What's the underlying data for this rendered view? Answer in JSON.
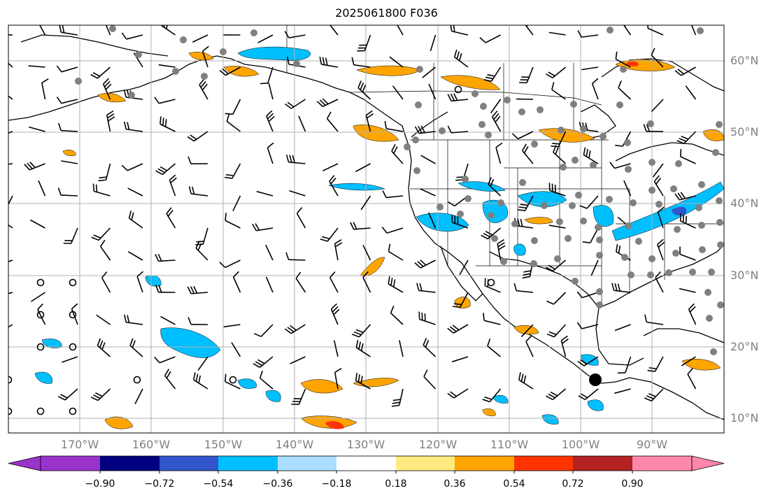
{
  "title": "2025061800 F036",
  "lat_labels": [
    "60°N",
    "50°N",
    "40°N",
    "30°N",
    "20°N",
    "10°N"
  ],
  "lon_labels": [
    "170°W",
    "160°W",
    "150°W",
    "140°W",
    "130°W",
    "120°W",
    "110°W",
    "100°W",
    "90°W"
  ],
  "colorbar": {
    "tick_labels": [
      "−0.90",
      "−0.72",
      "−0.54",
      "−0.36",
      "−0.18",
      "0.18",
      "0.36",
      "0.54",
      "0.72",
      "0.90"
    ],
    "colors": [
      "#9933cc",
      "#000080",
      "#3355cc",
      "#00bfff",
      "#aadfff",
      "#ffffff",
      "#ffea80",
      "#ffa500",
      "#ff3300",
      "#b22222",
      "#ff88aa"
    ]
  },
  "field_colors": {
    "negative_light": "#aadfff",
    "negative": "#00bfff",
    "negative_strong": "#3355cc",
    "positive_light": "#ffea80",
    "positive": "#ffa500",
    "positive_strong": "#ff3300",
    "station": "#808080",
    "barb": "#000000",
    "grid": "#b0b0b0"
  },
  "map": {
    "lon_range": [
      -180,
      -80
    ],
    "lat_range": [
      8,
      65
    ]
  }
}
